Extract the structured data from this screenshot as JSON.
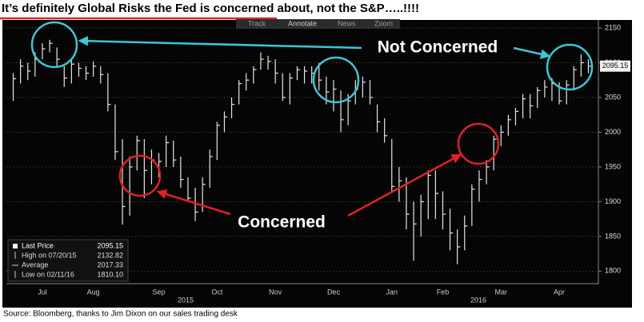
{
  "toolbar": [
    "Track",
    "Annotate",
    "News",
    "Zoom"
  ],
  "source": "Source: Bloomberg, thanks to Jim Dixon on our sales trading desk",
  "chart_data": {
    "type": "ohlc",
    "title": "It’s definitely Global Risks the Fed is concerned about, not the S&P…..!!!!",
    "annotations": [
      "Not Concerned",
      "Concerned"
    ],
    "years": [
      "2015",
      "2016"
    ],
    "legend": {
      "items": [
        {
          "label": "Last Price",
          "value": "2095.15"
        },
        {
          "label": "High on 07/20/15",
          "value": "2132.82"
        },
        {
          "label": "Average",
          "value": "2017.33"
        },
        {
          "label": "Low on 02/11/16",
          "value": "1810.10"
        }
      ]
    },
    "color": "#e6e6e6",
    "grid": true,
    "ylim": [
      1782,
      2165
    ],
    "yticks": [
      1800,
      1850,
      1900,
      1950,
      2000,
      2050,
      2100,
      2150
    ],
    "categories": [
      null,
      null,
      null,
      null,
      "Jul",
      null,
      null,
      null,
      null,
      null,
      null,
      "Aug",
      null,
      null,
      null,
      null,
      null,
      null,
      null,
      null,
      "Sep",
      null,
      null,
      null,
      null,
      null,
      null,
      null,
      "Oct",
      null,
      null,
      null,
      null,
      null,
      null,
      null,
      "Nov",
      null,
      null,
      null,
      null,
      null,
      null,
      null,
      "Dec",
      null,
      null,
      null,
      null,
      null,
      null,
      null,
      "Jan",
      null,
      null,
      null,
      null,
      null,
      null,
      "Feb",
      null,
      null,
      null,
      null,
      null,
      null,
      null,
      "Mar",
      null,
      null,
      null,
      null,
      null,
      null,
      null,
      "Apr",
      null,
      null,
      null,
      null
    ],
    "high": [
      2085,
      2105,
      2100,
      2115,
      2128,
      2133,
      2122,
      2095,
      2105,
      2100,
      2095,
      2102,
      2095,
      2085,
      2040,
      1990,
      1965,
      1995,
      1990,
      1975,
      1970,
      1995,
      1988,
      1965,
      1935,
      1920,
      1935,
      1975,
      2015,
      2030,
      2050,
      2075,
      2085,
      2095,
      2115,
      2110,
      2105,
      2085,
      2085,
      2095,
      2095,
      2095,
      2100,
      2080,
      2075,
      2060,
      2055,
      2075,
      2080,
      2075,
      2040,
      2020,
      1990,
      1950,
      1935,
      1900,
      1910,
      1945,
      1945,
      1915,
      1890,
      1860,
      1880,
      1925,
      1945,
      1960,
      1995,
      2010,
      2025,
      2035,
      2055,
      2055,
      2065,
      2075,
      2078,
      2072,
      2075,
      2095,
      2112,
      2105
    ],
    "low": [
      2045,
      2070,
      2075,
      2080,
      2105,
      2115,
      2095,
      2065,
      2070,
      2080,
      2075,
      2080,
      2070,
      2030,
      1960,
      1867,
      1880,
      1945,
      1905,
      1925,
      1935,
      1950,
      1950,
      1920,
      1900,
      1872,
      1885,
      1920,
      1960,
      2000,
      2020,
      2040,
      2060,
      2070,
      2090,
      2090,
      2070,
      2045,
      2040,
      2075,
      2070,
      2070,
      2060,
      2040,
      2030,
      2000,
      2010,
      2040,
      2050,
      2040,
      2000,
      1985,
      1915,
      1900,
      1860,
      1815,
      1850,
      1875,
      1875,
      1860,
      1830,
      1810,
      1830,
      1865,
      1900,
      1925,
      1945,
      1980,
      1995,
      2010,
      2020,
      2020,
      2035,
      2050,
      2045,
      2040,
      2040,
      2060,
      2080,
      2085
    ],
    "close": [
      2077,
      2095,
      2088,
      2105,
      2120,
      2128,
      2105,
      2078,
      2098,
      2092,
      2085,
      2095,
      2083,
      2040,
      1972,
      1893,
      1950,
      1988,
      1945,
      1960,
      1958,
      1985,
      1960,
      1932,
      1905,
      1885,
      1925,
      1965,
      2010,
      2022,
      2040,
      2070,
      2075,
      2090,
      2105,
      2102,
      2085,
      2050,
      2078,
      2090,
      2088,
      2085,
      2075,
      2058,
      2062,
      2018,
      2045,
      2062,
      2072,
      2050,
      2015,
      1995,
      1922,
      1930,
      1882,
      1868,
      1900,
      1938,
      1912,
      1882,
      1855,
      1835,
      1865,
      1918,
      1932,
      1950,
      1990,
      2000,
      2018,
      2030,
      2048,
      2038,
      2060,
      2065,
      2070,
      2045,
      2068,
      2090,
      2100,
      2095
    ]
  }
}
